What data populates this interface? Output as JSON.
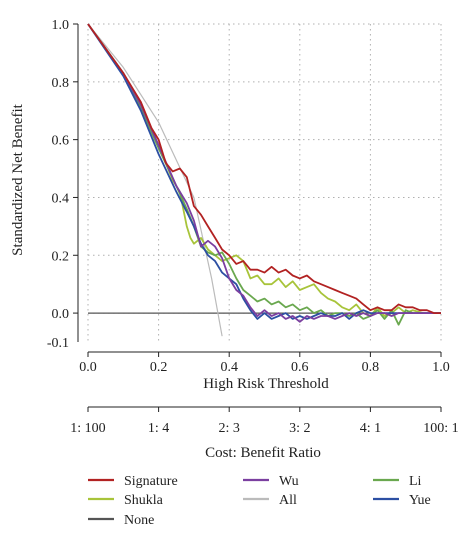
{
  "chart_data": {
    "type": "line",
    "title": "",
    "xlabel": "High Risk Threshold",
    "ylabel": "Standardized Net Benefit",
    "xlim": [
      0.0,
      1.0
    ],
    "ylim": [
      -0.1,
      1.0
    ],
    "x_ticks": [
      "0.0",
      "0.2",
      "0.4",
      "0.6",
      "0.8",
      "1.0"
    ],
    "y_ticks": [
      "-0.1",
      "0.0",
      "0.2",
      "0.4",
      "0.6",
      "0.8",
      "1.0"
    ],
    "y_tick_values": [
      0.0,
      0.2,
      0.4,
      0.6,
      0.8,
      1.0
    ],
    "grid": true,
    "secondary_axis": {
      "label": "Cost: Benefit Ratio",
      "ticks": [
        {
          "label": "1: 100",
          "x": 0.0
        },
        {
          "label": "1: 4",
          "x": 0.2
        },
        {
          "label": "2: 3",
          "x": 0.4
        },
        {
          "label": "3: 2",
          "x": 0.6
        },
        {
          "label": "4: 1",
          "x": 0.8
        },
        {
          "label": "100: 1",
          "x": 1.0
        }
      ]
    },
    "series": [
      {
        "name": "None",
        "color": "#555555",
        "points": [
          [
            0.0,
            0.0
          ],
          [
            1.0,
            0.0
          ]
        ]
      },
      {
        "name": "All",
        "color": "#bbbbbb",
        "points": [
          [
            0.0,
            1.0
          ],
          [
            0.1,
            0.85
          ],
          [
            0.2,
            0.66
          ],
          [
            0.3,
            0.4
          ],
          [
            0.35,
            0.12
          ],
          [
            0.38,
            -0.08
          ]
        ]
      },
      {
        "name": "Signature",
        "color": "#b22222",
        "points": [
          [
            0.0,
            1.0
          ],
          [
            0.1,
            0.83
          ],
          [
            0.15,
            0.73
          ],
          [
            0.18,
            0.64
          ],
          [
            0.2,
            0.6
          ],
          [
            0.22,
            0.52
          ],
          [
            0.24,
            0.49
          ],
          [
            0.26,
            0.5
          ],
          [
            0.28,
            0.47
          ],
          [
            0.3,
            0.37
          ],
          [
            0.32,
            0.34
          ],
          [
            0.34,
            0.3
          ],
          [
            0.36,
            0.26
          ],
          [
            0.38,
            0.22
          ],
          [
            0.4,
            0.2
          ],
          [
            0.42,
            0.17
          ],
          [
            0.44,
            0.18
          ],
          [
            0.46,
            0.15
          ],
          [
            0.48,
            0.15
          ],
          [
            0.5,
            0.14
          ],
          [
            0.52,
            0.16
          ],
          [
            0.54,
            0.14
          ],
          [
            0.56,
            0.15
          ],
          [
            0.58,
            0.13
          ],
          [
            0.6,
            0.12
          ],
          [
            0.62,
            0.13
          ],
          [
            0.64,
            0.11
          ],
          [
            0.66,
            0.1
          ],
          [
            0.68,
            0.09
          ],
          [
            0.7,
            0.08
          ],
          [
            0.72,
            0.07
          ],
          [
            0.74,
            0.06
          ],
          [
            0.76,
            0.05
          ],
          [
            0.78,
            0.03
          ],
          [
            0.8,
            0.01
          ],
          [
            0.82,
            0.02
          ],
          [
            0.84,
            0.01
          ],
          [
            0.86,
            0.01
          ],
          [
            0.88,
            0.03
          ],
          [
            0.9,
            0.02
          ],
          [
            0.92,
            0.02
          ],
          [
            0.94,
            0.01
          ],
          [
            0.96,
            0.01
          ],
          [
            0.98,
            0.0
          ],
          [
            1.0,
            0.0
          ]
        ]
      },
      {
        "name": "Wu",
        "color": "#7b3fa0",
        "points": [
          [
            0.0,
            1.0
          ],
          [
            0.1,
            0.83
          ],
          [
            0.15,
            0.72
          ],
          [
            0.2,
            0.58
          ],
          [
            0.25,
            0.44
          ],
          [
            0.28,
            0.38
          ],
          [
            0.3,
            0.32
          ],
          [
            0.32,
            0.23
          ],
          [
            0.34,
            0.25
          ],
          [
            0.36,
            0.23
          ],
          [
            0.38,
            0.19
          ],
          [
            0.4,
            0.12
          ],
          [
            0.42,
            0.08
          ],
          [
            0.44,
            0.06
          ],
          [
            0.46,
            0.02
          ],
          [
            0.48,
            -0.01
          ],
          [
            0.5,
            0.01
          ],
          [
            0.52,
            -0.01
          ],
          [
            0.54,
            0.0
          ],
          [
            0.56,
            -0.02
          ],
          [
            0.58,
            -0.01
          ],
          [
            0.6,
            -0.03
          ],
          [
            0.62,
            -0.01
          ],
          [
            0.64,
            -0.02
          ],
          [
            0.66,
            -0.01
          ],
          [
            0.68,
            -0.01
          ],
          [
            0.7,
            -0.02
          ],
          [
            0.72,
            -0.01
          ],
          [
            0.74,
            0.0
          ],
          [
            0.76,
            -0.01
          ],
          [
            0.78,
            0.0
          ],
          [
            0.8,
            -0.01
          ],
          [
            0.82,
            0.0
          ],
          [
            0.84,
            0.0
          ],
          [
            0.86,
            -0.01
          ],
          [
            0.88,
            0.0
          ],
          [
            0.9,
            0.0
          ],
          [
            0.95,
            0.0
          ],
          [
            1.0,
            0.0
          ]
        ]
      },
      {
        "name": "Li",
        "color": "#6aa84f",
        "points": [
          [
            0.0,
            1.0
          ],
          [
            0.1,
            0.83
          ],
          [
            0.15,
            0.71
          ],
          [
            0.2,
            0.57
          ],
          [
            0.25,
            0.44
          ],
          [
            0.28,
            0.36
          ],
          [
            0.3,
            0.3
          ],
          [
            0.32,
            0.23
          ],
          [
            0.34,
            0.21
          ],
          [
            0.36,
            0.2
          ],
          [
            0.38,
            0.21
          ],
          [
            0.4,
            0.17
          ],
          [
            0.42,
            0.12
          ],
          [
            0.44,
            0.08
          ],
          [
            0.46,
            0.06
          ],
          [
            0.48,
            0.04
          ],
          [
            0.5,
            0.05
          ],
          [
            0.52,
            0.03
          ],
          [
            0.54,
            0.04
          ],
          [
            0.56,
            0.02
          ],
          [
            0.58,
            0.03
          ],
          [
            0.6,
            0.01
          ],
          [
            0.62,
            0.02
          ],
          [
            0.64,
            0.0
          ],
          [
            0.66,
            0.01
          ],
          [
            0.68,
            -0.01
          ],
          [
            0.7,
            0.0
          ],
          [
            0.72,
            0.0
          ],
          [
            0.74,
            -0.01
          ],
          [
            0.76,
            0.0
          ],
          [
            0.78,
            -0.02
          ],
          [
            0.8,
            -0.01
          ],
          [
            0.82,
            0.01
          ],
          [
            0.84,
            -0.02
          ],
          [
            0.86,
            0.01
          ],
          [
            0.88,
            -0.04
          ],
          [
            0.9,
            0.01
          ],
          [
            0.92,
            0.0
          ],
          [
            0.95,
            0.0
          ],
          [
            1.0,
            0.0
          ]
        ]
      },
      {
        "name": "Shukla",
        "color": "#a8c43a",
        "points": [
          [
            0.0,
            1.0
          ],
          [
            0.1,
            0.83
          ],
          [
            0.15,
            0.72
          ],
          [
            0.2,
            0.58
          ],
          [
            0.24,
            0.46
          ],
          [
            0.26,
            0.42
          ],
          [
            0.28,
            0.3
          ],
          [
            0.29,
            0.26
          ],
          [
            0.3,
            0.24
          ],
          [
            0.32,
            0.26
          ],
          [
            0.34,
            0.22
          ],
          [
            0.36,
            0.2
          ],
          [
            0.38,
            0.18
          ],
          [
            0.4,
            0.19
          ],
          [
            0.42,
            0.2
          ],
          [
            0.44,
            0.18
          ],
          [
            0.46,
            0.12
          ],
          [
            0.48,
            0.13
          ],
          [
            0.5,
            0.1
          ],
          [
            0.52,
            0.1
          ],
          [
            0.54,
            0.12
          ],
          [
            0.56,
            0.09
          ],
          [
            0.58,
            0.11
          ],
          [
            0.6,
            0.08
          ],
          [
            0.62,
            0.09
          ],
          [
            0.64,
            0.1
          ],
          [
            0.66,
            0.07
          ],
          [
            0.68,
            0.05
          ],
          [
            0.7,
            0.04
          ],
          [
            0.72,
            0.02
          ],
          [
            0.74,
            0.01
          ],
          [
            0.76,
            0.03
          ],
          [
            0.78,
            0.0
          ],
          [
            0.8,
            -0.01
          ],
          [
            0.82,
            0.02
          ],
          [
            0.84,
            -0.01
          ],
          [
            0.86,
            0.0
          ],
          [
            0.88,
            0.02
          ],
          [
            0.9,
            0.0
          ],
          [
            0.92,
            0.01
          ],
          [
            0.95,
            0.0
          ],
          [
            1.0,
            0.0
          ]
        ]
      },
      {
        "name": "Yue",
        "color": "#2c4fa3",
        "points": [
          [
            0.0,
            1.0
          ],
          [
            0.1,
            0.82
          ],
          [
            0.15,
            0.7
          ],
          [
            0.2,
            0.55
          ],
          [
            0.25,
            0.42
          ],
          [
            0.28,
            0.35
          ],
          [
            0.3,
            0.3
          ],
          [
            0.32,
            0.24
          ],
          [
            0.34,
            0.2
          ],
          [
            0.36,
            0.18
          ],
          [
            0.38,
            0.14
          ],
          [
            0.4,
            0.12
          ],
          [
            0.42,
            0.1
          ],
          [
            0.44,
            0.05
          ],
          [
            0.46,
            0.01
          ],
          [
            0.48,
            -0.02
          ],
          [
            0.5,
            0.0
          ],
          [
            0.52,
            -0.02
          ],
          [
            0.54,
            -0.01
          ],
          [
            0.56,
            0.0
          ],
          [
            0.58,
            -0.02
          ],
          [
            0.6,
            -0.01
          ],
          [
            0.62,
            -0.02
          ],
          [
            0.64,
            -0.01
          ],
          [
            0.66,
            0.0
          ],
          [
            0.68,
            -0.01
          ],
          [
            0.7,
            -0.01
          ],
          [
            0.72,
            0.0
          ],
          [
            0.74,
            -0.02
          ],
          [
            0.76,
            0.0
          ],
          [
            0.78,
            0.01
          ],
          [
            0.8,
            0.0
          ],
          [
            0.85,
            0.0
          ],
          [
            0.9,
            0.0
          ],
          [
            1.0,
            0.0
          ]
        ]
      }
    ],
    "legend": {
      "placement": "bottom",
      "entries": [
        {
          "name": "Signature",
          "color": "#b22222"
        },
        {
          "name": "Wu",
          "color": "#7b3fa0"
        },
        {
          "name": "Li",
          "color": "#6aa84f"
        },
        {
          "name": "Shukla",
          "color": "#a8c43a"
        },
        {
          "name": "All",
          "color": "#bbbbbb"
        },
        {
          "name": "Yue",
          "color": "#2c4fa3"
        },
        {
          "name": "None",
          "color": "#555555"
        }
      ]
    }
  }
}
